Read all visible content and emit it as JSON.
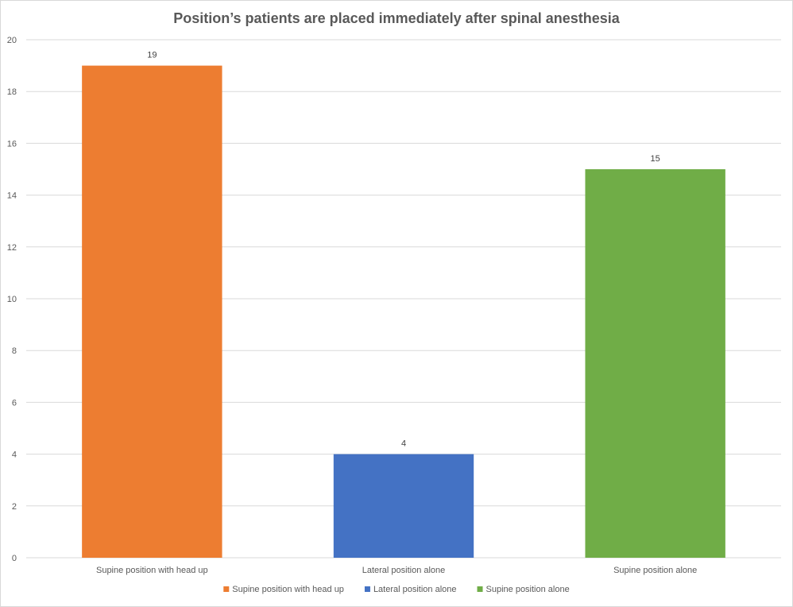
{
  "chart_data": {
    "type": "bar",
    "title": "Position’s patients are placed immediately after spinal anesthesia",
    "xlabel": "",
    "ylabel": "",
    "ylim": [
      0,
      20
    ],
    "y_ticks": [
      0,
      2,
      4,
      6,
      8,
      10,
      12,
      14,
      16,
      18,
      20
    ],
    "grid": true,
    "legend_position": "bottom",
    "categories": [
      "Supine position with head up",
      "Lateral position alone",
      "Supine position alone"
    ],
    "values": [
      19,
      4,
      15
    ],
    "data_labels": [
      "19",
      "4",
      "15"
    ],
    "colors": [
      "#ED7D31",
      "#4472C4",
      "#70AD47"
    ],
    "legend": [
      {
        "label": "Supine position with head up",
        "color": "#ED7D31"
      },
      {
        "label": "Lateral position alone",
        "color": "#4472C4"
      },
      {
        "label": "Supine position alone",
        "color": "#70AD47"
      }
    ]
  }
}
